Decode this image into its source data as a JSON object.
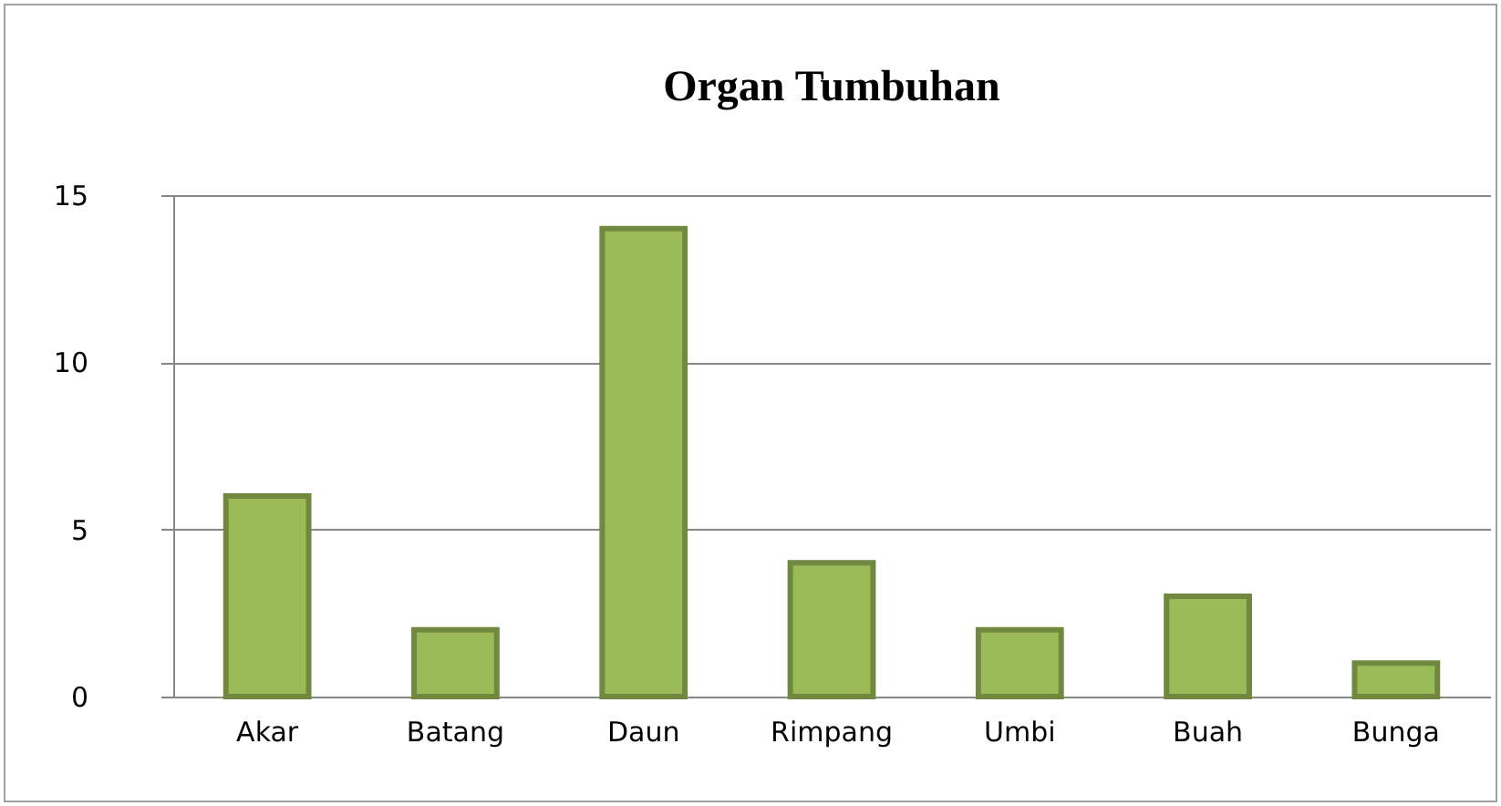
{
  "chart_data": {
    "type": "bar",
    "title": "Organ Tumbuhan",
    "categories": [
      "Akar",
      "Batang",
      "Daun",
      "Rimpang",
      "Umbi",
      "Buah",
      "Bunga"
    ],
    "values": [
      6,
      2,
      14,
      4,
      2,
      3,
      1
    ],
    "color": "#9bbb59",
    "ylim": [
      0,
      15
    ],
    "yticks": [
      0,
      5,
      10,
      15
    ],
    "grid": "y"
  }
}
